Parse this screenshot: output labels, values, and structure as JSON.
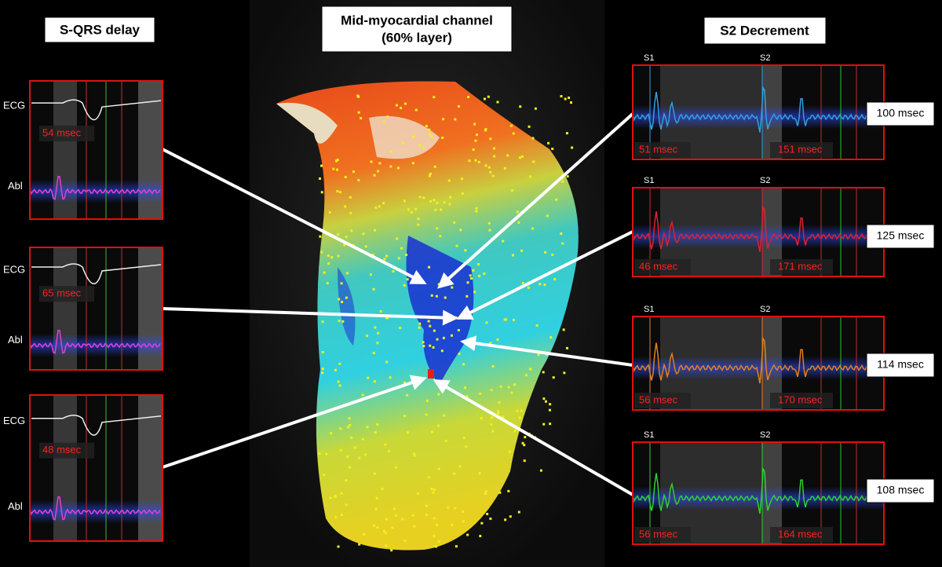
{
  "header": {
    "left_title": "S-QRS delay",
    "center_title": [
      "Mid-myocardial channel",
      "(60% layer)"
    ],
    "right_title": "S2 Decrement"
  },
  "left_panels": [
    {
      "ecg_label": "ECG",
      "abl_label": "Abl",
      "delay": "54 msec"
    },
    {
      "ecg_label": "ECG",
      "abl_label": "Abl",
      "delay": "65 msec"
    },
    {
      "ecg_label": "ECG",
      "abl_label": "Abl",
      "delay": "48 msec"
    }
  ],
  "right_panels": [
    {
      "s1": "S1",
      "s2": "S2",
      "s1_delay": "51 msec",
      "s2_delay": "151 msec",
      "decrement": "100 msec"
    },
    {
      "s1": "S1",
      "s2": "S2",
      "s1_delay": "46 msec",
      "s2_delay": "171 msec",
      "decrement": "125 msec"
    },
    {
      "s1": "S1",
      "s2": "S2",
      "s1_delay": "56 msec",
      "s2_delay": "170 msec",
      "decrement": "114 msec"
    },
    {
      "s1": "S1",
      "s2": "S2",
      "s1_delay": "56 msec",
      "s2_delay": "164 msec",
      "decrement": "108 msec"
    }
  ]
}
